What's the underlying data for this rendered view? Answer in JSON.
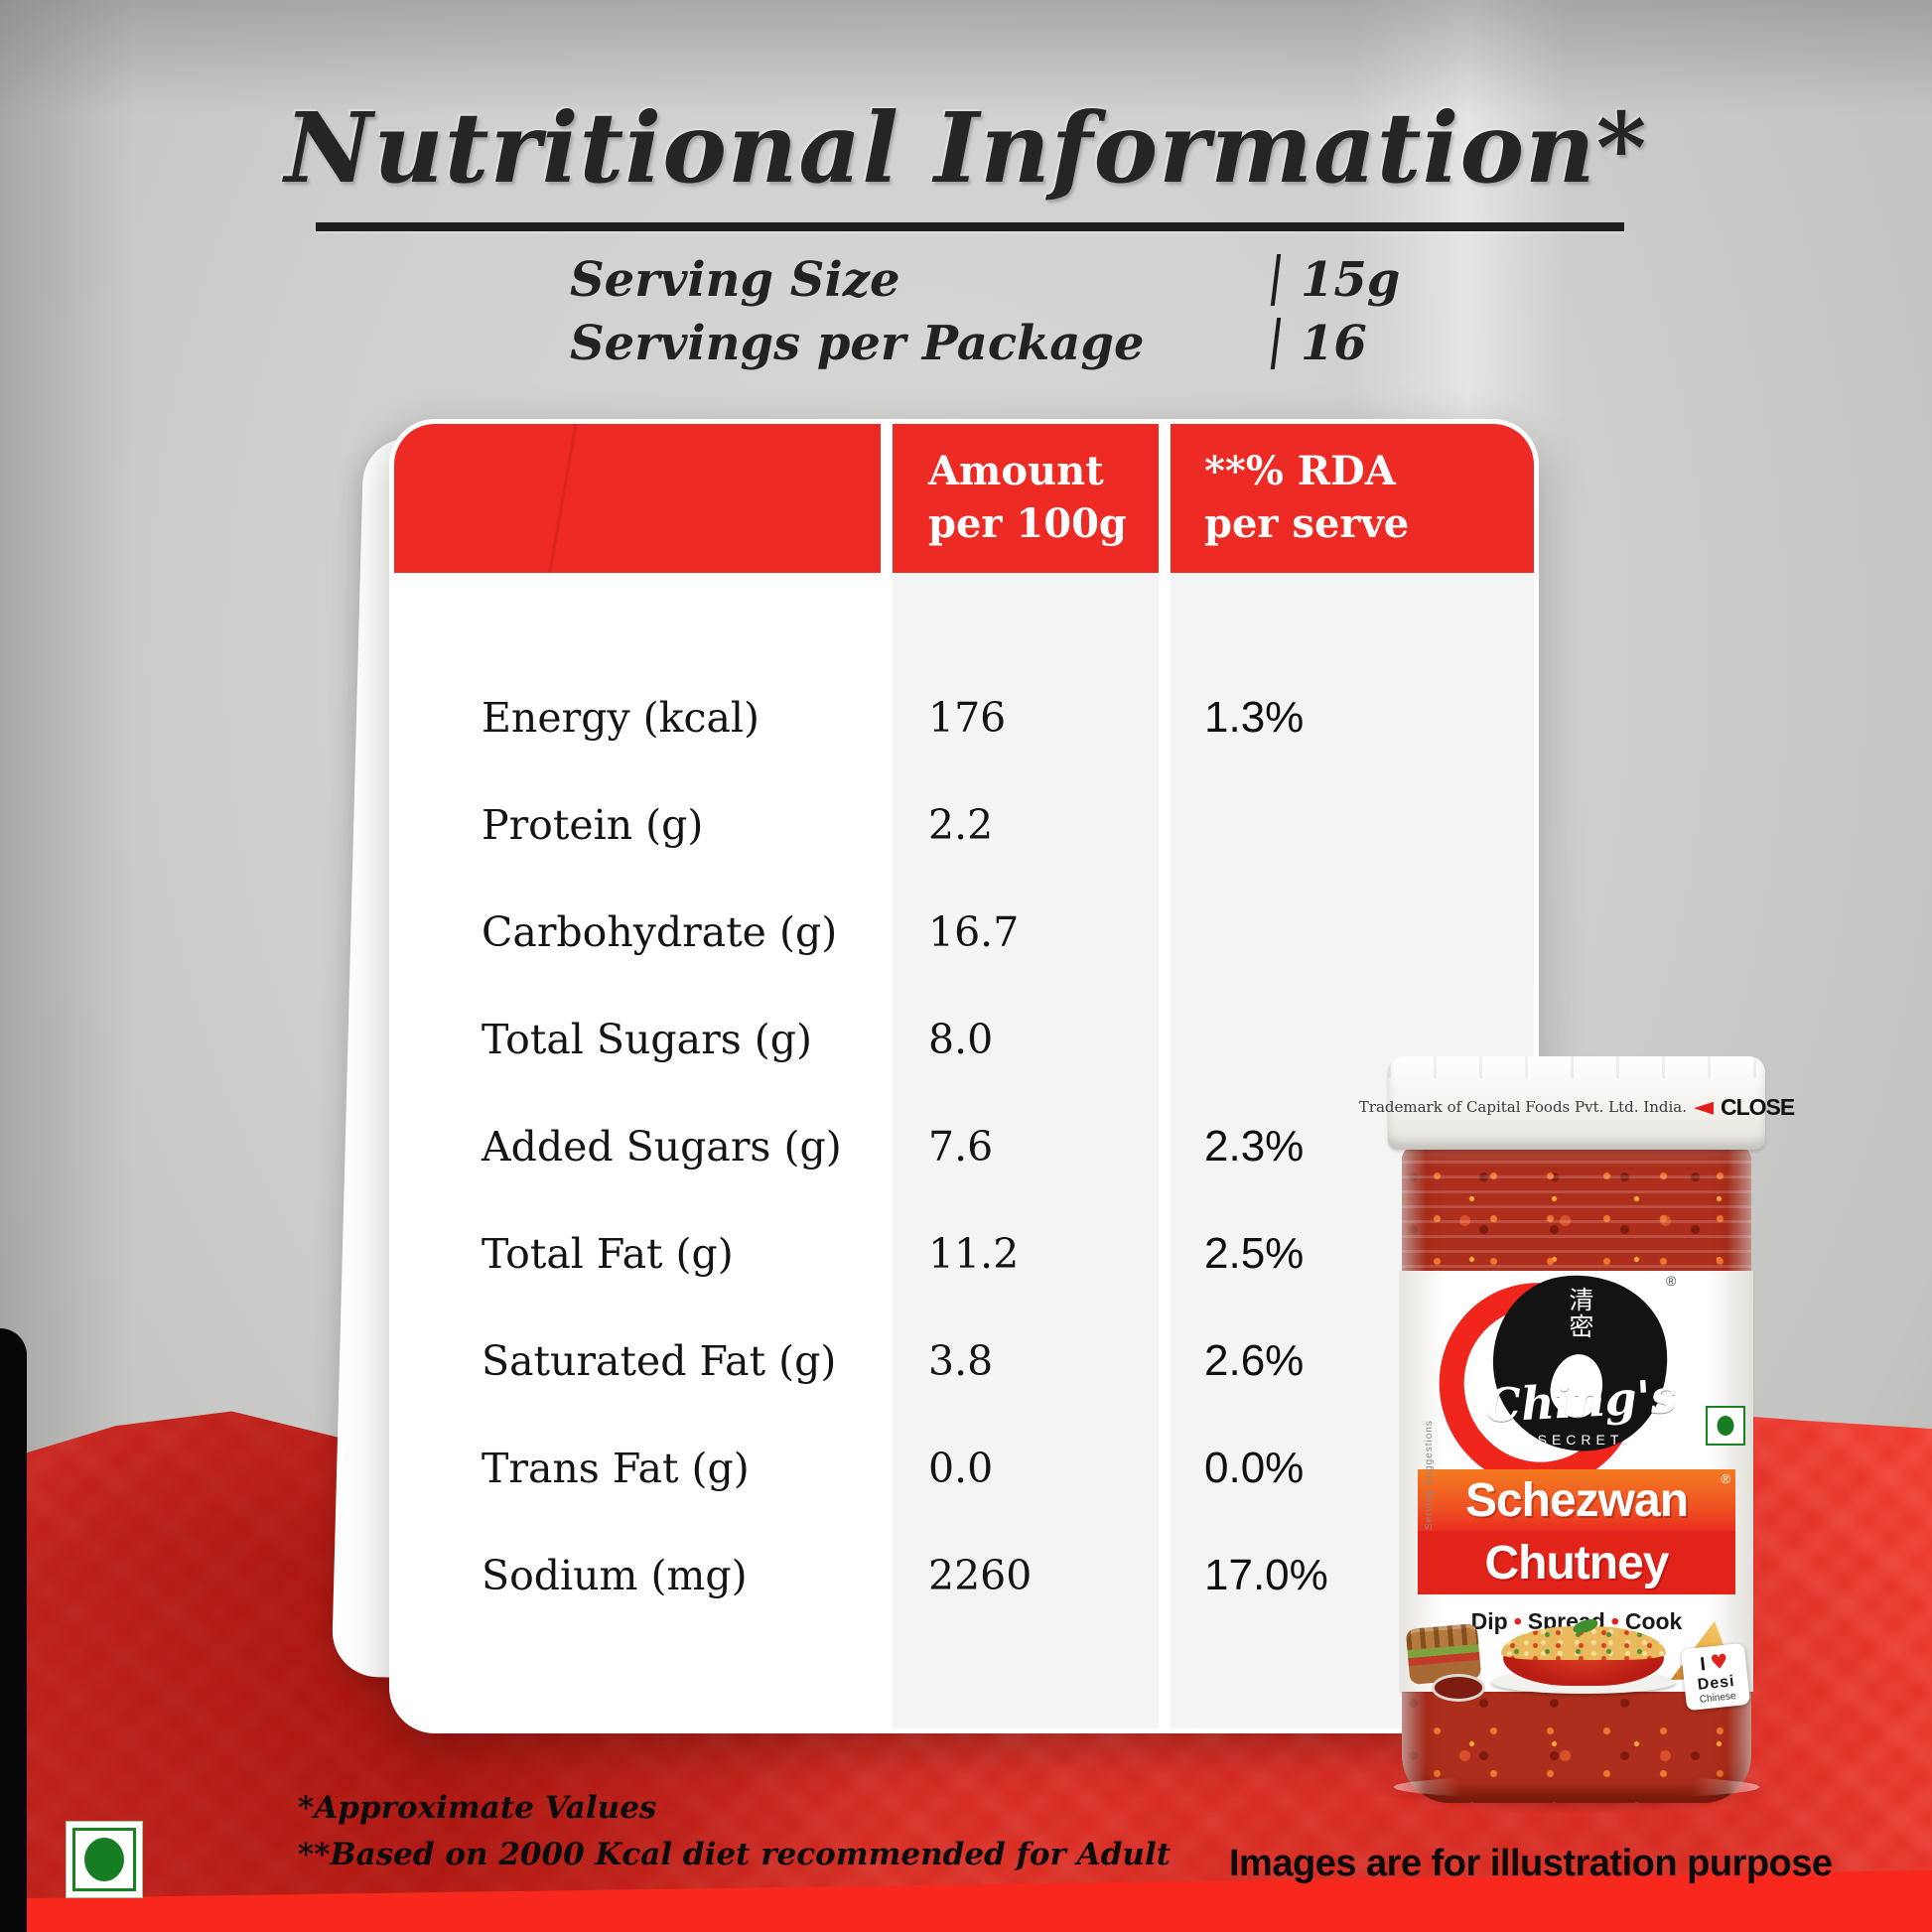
{
  "header": {
    "title": "Nutritional Information*",
    "serving_rows": [
      {
        "label": "Serving Size",
        "separator": "|",
        "value": "15g"
      },
      {
        "label": "Servings per Package",
        "separator": "|",
        "value": "16"
      }
    ]
  },
  "table": {
    "columns": [
      {
        "line1": "Amount",
        "line2": "per 100g"
      },
      {
        "line1": "**% RDA",
        "line2": "per serve"
      }
    ],
    "rows": [
      {
        "nutrient": "Energy (kcal)",
        "amount": "176",
        "rda": "1.3%"
      },
      {
        "nutrient": "Protein (g)",
        "amount": "2.2",
        "rda": ""
      },
      {
        "nutrient": "Carbohydrate (g)",
        "amount": "16.7",
        "rda": ""
      },
      {
        "nutrient": "Total Sugars (g)",
        "amount": "8.0",
        "rda": ""
      },
      {
        "nutrient": "Added Sugars (g)",
        "amount": "7.6",
        "rda": "2.3%"
      },
      {
        "nutrient": "Total Fat (g)",
        "amount": "11.2",
        "rda": "2.5%"
      },
      {
        "nutrient": "Saturated Fat (g)",
        "amount": "3.8",
        "rda": "2.6%"
      },
      {
        "nutrient": "Trans Fat (g)",
        "amount": "0.0",
        "rda": "0.0%"
      },
      {
        "nutrient": "Sodium (mg)",
        "amount": "2260",
        "rda": "17.0%"
      }
    ]
  },
  "footnotes": {
    "line1": "*Approximate Values",
    "line2": "**Based on 2000 Kcal diet recommended for Adult"
  },
  "disclaimer": "Images are for illustration purpose",
  "jar": {
    "lid_text": "Trademark of Capital Foods Pvt. Ltd. India.",
    "close_arrow": "◄",
    "close_label": "CLOSE",
    "brand_cn_1": "清",
    "brand_cn_2": "密",
    "registered": "®",
    "brand": "Ching's",
    "brand_sub": "SECRET",
    "product_line1": "Schezwan",
    "product_line2": "Chutney",
    "dip_words": [
      "Dip",
      "Spread",
      "Cook"
    ],
    "dip_sep": "•",
    "badge_i": "I",
    "badge_heart": "♥",
    "badge_line1": "Desi",
    "badge_line2": "Chinese",
    "side_note": "Serving Suggestions"
  },
  "colors": {
    "accent_red": "#ED2A24",
    "veg_green": "#17821F",
    "cloth_red": "#EE2B20"
  }
}
